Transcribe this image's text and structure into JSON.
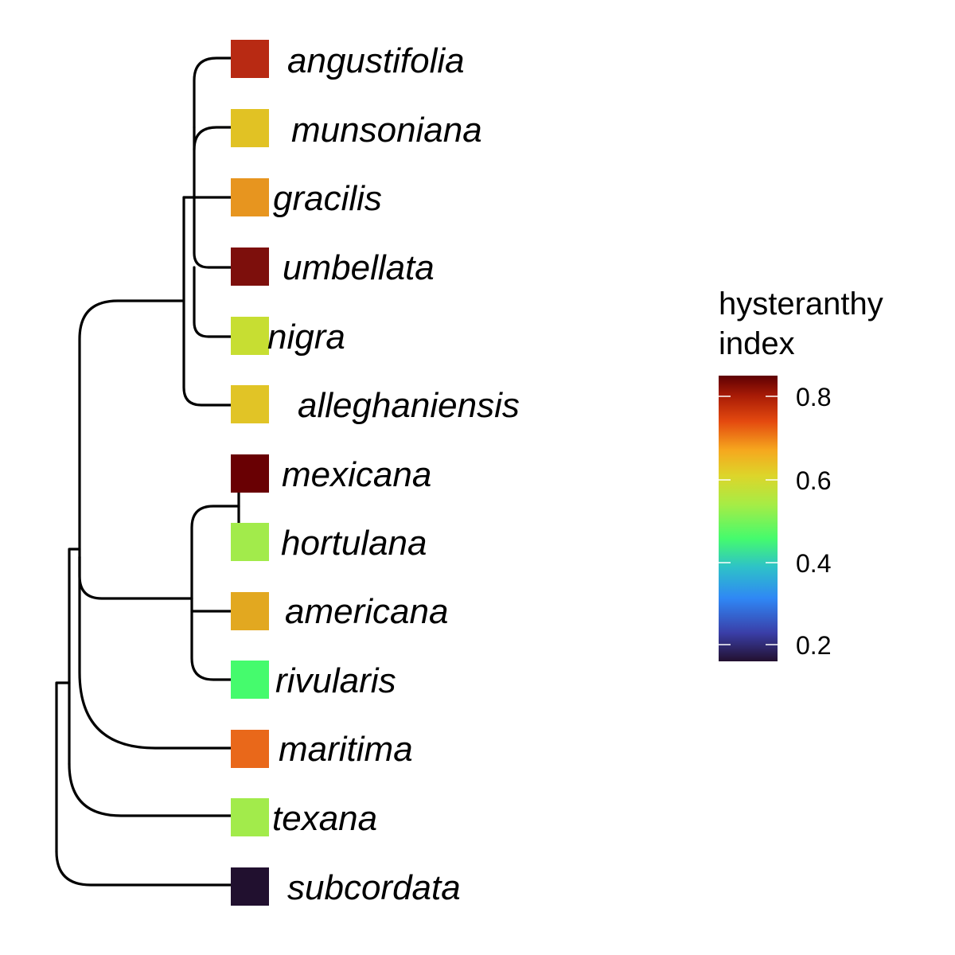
{
  "tips": [
    {
      "name": "angustifolia",
      "color": "#B82A13"
    },
    {
      "name": "munsoniana",
      "color": "#E1C224"
    },
    {
      "name": "gracilis",
      "color": "#E7951F"
    },
    {
      "name": "umbellata",
      "color": "#7D0F0C"
    },
    {
      "name": "nigra",
      "color": "#C7DE32"
    },
    {
      "name": "alleghaniensis",
      "color": "#E1C426"
    },
    {
      "name": "mexicana",
      "color": "#690003"
    },
    {
      "name": "hortulana",
      "color": "#A2EB4B"
    },
    {
      "name": "americana",
      "color": "#E2A820"
    },
    {
      "name": "rivularis",
      "color": "#45FB6D"
    },
    {
      "name": "maritima",
      "color": "#E9681A"
    },
    {
      "name": "texana",
      "color": "#A2EB4B"
    },
    {
      "name": "subcordata",
      "color": "#21102F"
    }
  ],
  "legend": {
    "title_line1": "hysteranthy",
    "title_line2": "index",
    "ticks": [
      "0.8",
      "0.6",
      "0.4",
      "0.2"
    ]
  }
}
